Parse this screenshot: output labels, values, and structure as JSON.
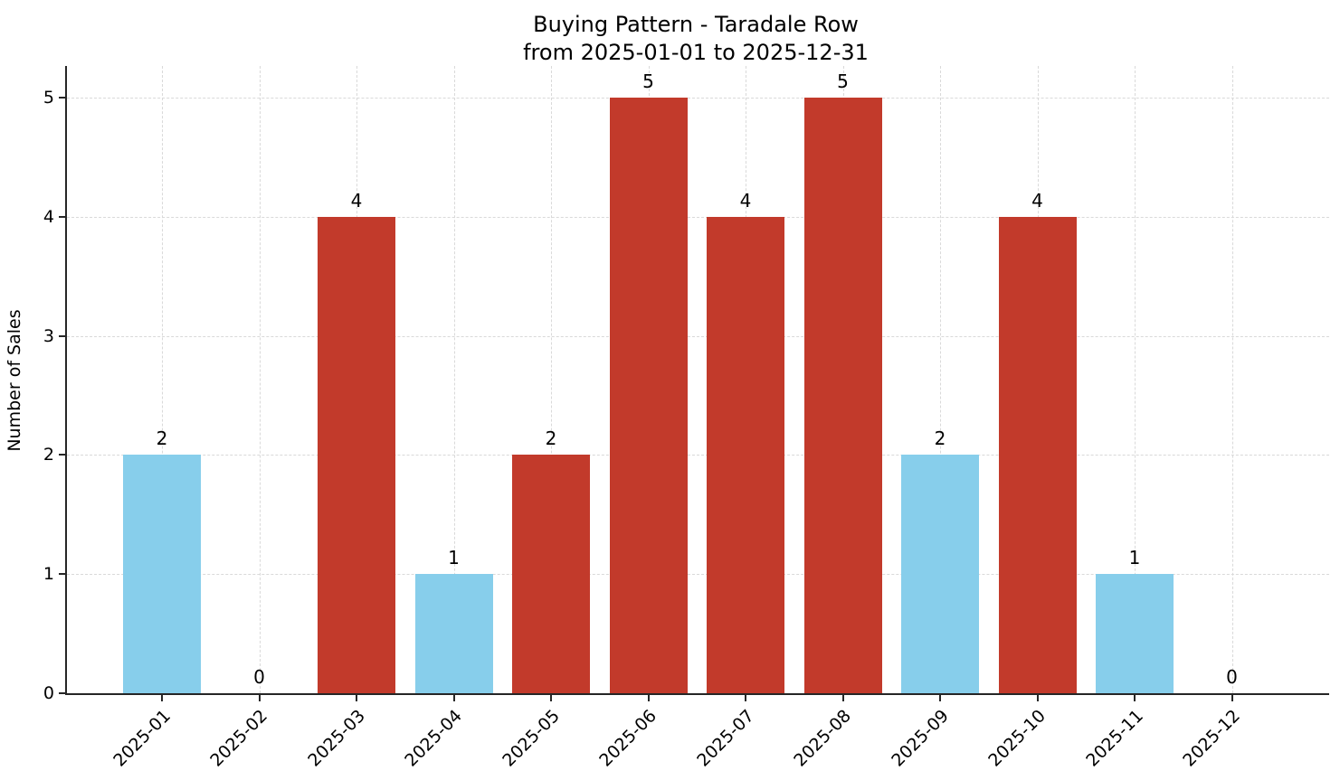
{
  "chart_data": {
    "type": "bar",
    "title": "Buying Pattern - Taradale Row",
    "subtitle": "from 2025-01-01 to 2025-12-31",
    "xlabel": "",
    "ylabel": "Number of Sales",
    "categories": [
      "2025-01",
      "2025-02",
      "2025-03",
      "2025-04",
      "2025-05",
      "2025-06",
      "2025-07",
      "2025-08",
      "2025-09",
      "2025-10",
      "2025-11",
      "2025-12"
    ],
    "values": [
      2,
      0,
      4,
      1,
      2,
      5,
      4,
      5,
      2,
      4,
      1,
      0
    ],
    "bar_labels": [
      "2",
      "0",
      "4",
      "1",
      "2",
      "5",
      "4",
      "5",
      "2",
      "4",
      "1",
      "0"
    ],
    "bar_colors": [
      "#87ceeb",
      null,
      "#c23a2b",
      "#87ceeb",
      "#c23a2b",
      "#c23a2b",
      "#c23a2b",
      "#c23a2b",
      "#87ceeb",
      "#c23a2b",
      "#87ceeb",
      null
    ],
    "colors": {
      "blue_bar": "#87ceeb",
      "red_bar": "#c23a2b",
      "axis": "#262626",
      "grid": "#d9d9d9",
      "text": "#000000"
    },
    "y_ticks": [
      0,
      1,
      2,
      3,
      4,
      5
    ],
    "ylim": [
      0,
      5.27
    ],
    "grid": true,
    "grid_style": "dashed",
    "legend": null,
    "x_tick_rotation_deg": 45
  }
}
